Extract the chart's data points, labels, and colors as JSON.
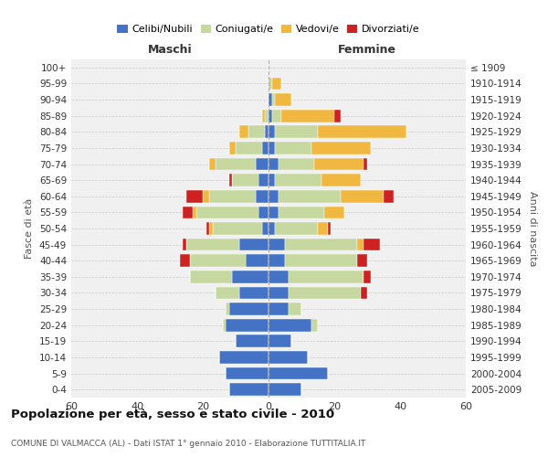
{
  "age_groups": [
    "0-4",
    "5-9",
    "10-14",
    "15-19",
    "20-24",
    "25-29",
    "30-34",
    "35-39",
    "40-44",
    "45-49",
    "50-54",
    "55-59",
    "60-64",
    "65-69",
    "70-74",
    "75-79",
    "80-84",
    "85-89",
    "90-94",
    "95-99",
    "100+"
  ],
  "birth_years": [
    "2005-2009",
    "2000-2004",
    "1995-1999",
    "1990-1994",
    "1985-1989",
    "1980-1984",
    "1975-1979",
    "1970-1974",
    "1965-1969",
    "1960-1964",
    "1955-1959",
    "1950-1954",
    "1945-1949",
    "1940-1944",
    "1935-1939",
    "1930-1934",
    "1925-1929",
    "1920-1924",
    "1915-1919",
    "1910-1914",
    "≤ 1909"
  ],
  "colors": {
    "celibe": "#4472C4",
    "coniugato": "#C6D8A0",
    "vedovo": "#F0B840",
    "divorziato": "#CC2222"
  },
  "maschi": {
    "celibe": [
      12,
      13,
      15,
      10,
      13,
      12,
      9,
      11,
      7,
      9,
      2,
      3,
      4,
      3,
      4,
      2,
      1,
      0,
      0,
      0,
      0
    ],
    "coniugato": [
      0,
      0,
      0,
      0,
      1,
      1,
      7,
      13,
      17,
      16,
      15,
      19,
      14,
      8,
      12,
      8,
      5,
      1,
      0,
      0,
      0
    ],
    "vedovo": [
      0,
      0,
      0,
      0,
      0,
      0,
      0,
      0,
      0,
      0,
      1,
      1,
      2,
      0,
      2,
      2,
      3,
      1,
      0,
      0,
      0
    ],
    "divorziato": [
      0,
      0,
      0,
      0,
      0,
      0,
      0,
      0,
      3,
      1,
      1,
      3,
      5,
      1,
      0,
      0,
      0,
      0,
      0,
      0,
      0
    ]
  },
  "femmine": {
    "celibe": [
      10,
      18,
      12,
      7,
      13,
      6,
      6,
      6,
      5,
      5,
      2,
      3,
      3,
      2,
      3,
      2,
      2,
      1,
      1,
      0,
      0
    ],
    "coniugato": [
      0,
      0,
      0,
      0,
      2,
      4,
      22,
      23,
      22,
      22,
      13,
      14,
      19,
      14,
      11,
      11,
      13,
      3,
      1,
      1,
      0
    ],
    "vedovo": [
      0,
      0,
      0,
      0,
      0,
      0,
      0,
      0,
      0,
      2,
      3,
      6,
      13,
      12,
      15,
      18,
      27,
      16,
      5,
      3,
      0
    ],
    "divorziato": [
      0,
      0,
      0,
      0,
      0,
      0,
      2,
      2,
      3,
      5,
      1,
      0,
      3,
      0,
      1,
      0,
      0,
      2,
      0,
      0,
      0
    ]
  },
  "xlim": 60,
  "title": "Popolazione per età, sesso e stato civile - 2010",
  "subtitle": "COMUNE DI VALMACCA (AL) - Dati ISTAT 1° gennaio 2010 - Elaborazione TUTTITALIA.IT",
  "ylabel_left": "Fasce di età",
  "ylabel_right": "Anni di nascita",
  "legend_labels": [
    "Celibi/Nubili",
    "Coniugati/e",
    "Vedovi/e",
    "Divorziati/e"
  ],
  "maschi_label": "Maschi",
  "femmine_label": "Femmine",
  "bg_color": "#f0f0f0"
}
